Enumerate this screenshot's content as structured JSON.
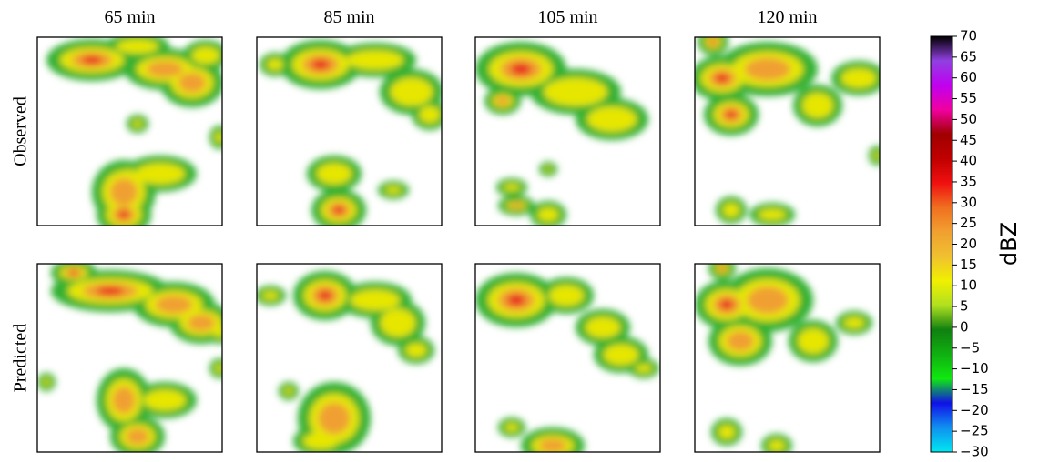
{
  "chart_data": {
    "type": "heatmap",
    "columns": [
      "65 min",
      "85 min",
      "105 min",
      "120 min"
    ],
    "rows": [
      "Observed",
      "Predicted"
    ],
    "colorbar": {
      "label": "dBZ",
      "lim": [
        -30,
        70
      ],
      "ticks": [
        {
          "value": -30,
          "label": "−30"
        },
        {
          "value": -25,
          "label": "−25"
        },
        {
          "value": -20,
          "label": "−20"
        },
        {
          "value": -15,
          "label": "−15"
        },
        {
          "value": -10,
          "label": "−10"
        },
        {
          "value": -5,
          "label": "−5"
        },
        0,
        5,
        10,
        15,
        20,
        25,
        30,
        35,
        40,
        45,
        50,
        55,
        60,
        65,
        70
      ],
      "colors": [
        "#00e8f0",
        "#1090f0",
        "#1010e8",
        "#10e810",
        "#10b010",
        "#108010",
        "#b0e020",
        "#f0f000",
        "#f0c030",
        "#f0a030",
        "#f07020",
        "#f01010",
        "#c00000",
        "#a00000",
        "#f000a0",
        "#c000f0",
        "#9040e0",
        "#000000"
      ]
    }
  }
}
